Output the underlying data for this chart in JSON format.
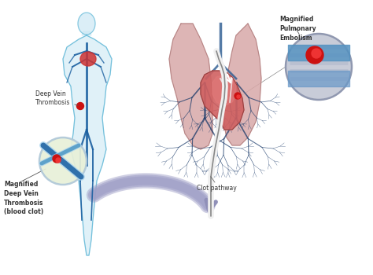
{
  "background_color": "#ffffff",
  "labels": {
    "deep_vein": "Deep Vein\nThrombosis",
    "magnified_dvt": "Magnified\nDeep Vein\nThrombosis\n(blood clot)",
    "clot_pathway": "Clot pathway",
    "magnified_pe": "Magnified\nPulmonary\nEmbolism"
  },
  "colors": {
    "body_outline": "#5ab5d5",
    "body_fill": "#cce8f4",
    "body_fill2": "#aad4ee",
    "vein": "#1a5fa0",
    "vein_light": "#4090c0",
    "lung_fill": "#d8a8a8",
    "lung_fill2": "#c89898",
    "lung_outline": "#b08080",
    "heart_fill": "#d06060",
    "heart_fill2": "#e07878",
    "heart_outline": "#904040",
    "clot_red": "#cc1111",
    "clot_red2": "#ee3333",
    "arrow_color": "#9090b8",
    "arrow_fill": "#a0a0c8",
    "dvt_circle_fill": "#e8f0d8",
    "dvt_circle_outline": "#b0c8d8",
    "pe_circle_fill": "#d0d4e0",
    "pe_circle_outline": "#9098b0",
    "pe_vein1": "#4080b0",
    "pe_vein2": "#8090b8",
    "text_color": "#333333",
    "catheter_white": "#f0f0f0",
    "catheter_outline": "#888888",
    "line_color": "#555555"
  },
  "figsize": [
    4.74,
    3.5
  ],
  "dpi": 100
}
